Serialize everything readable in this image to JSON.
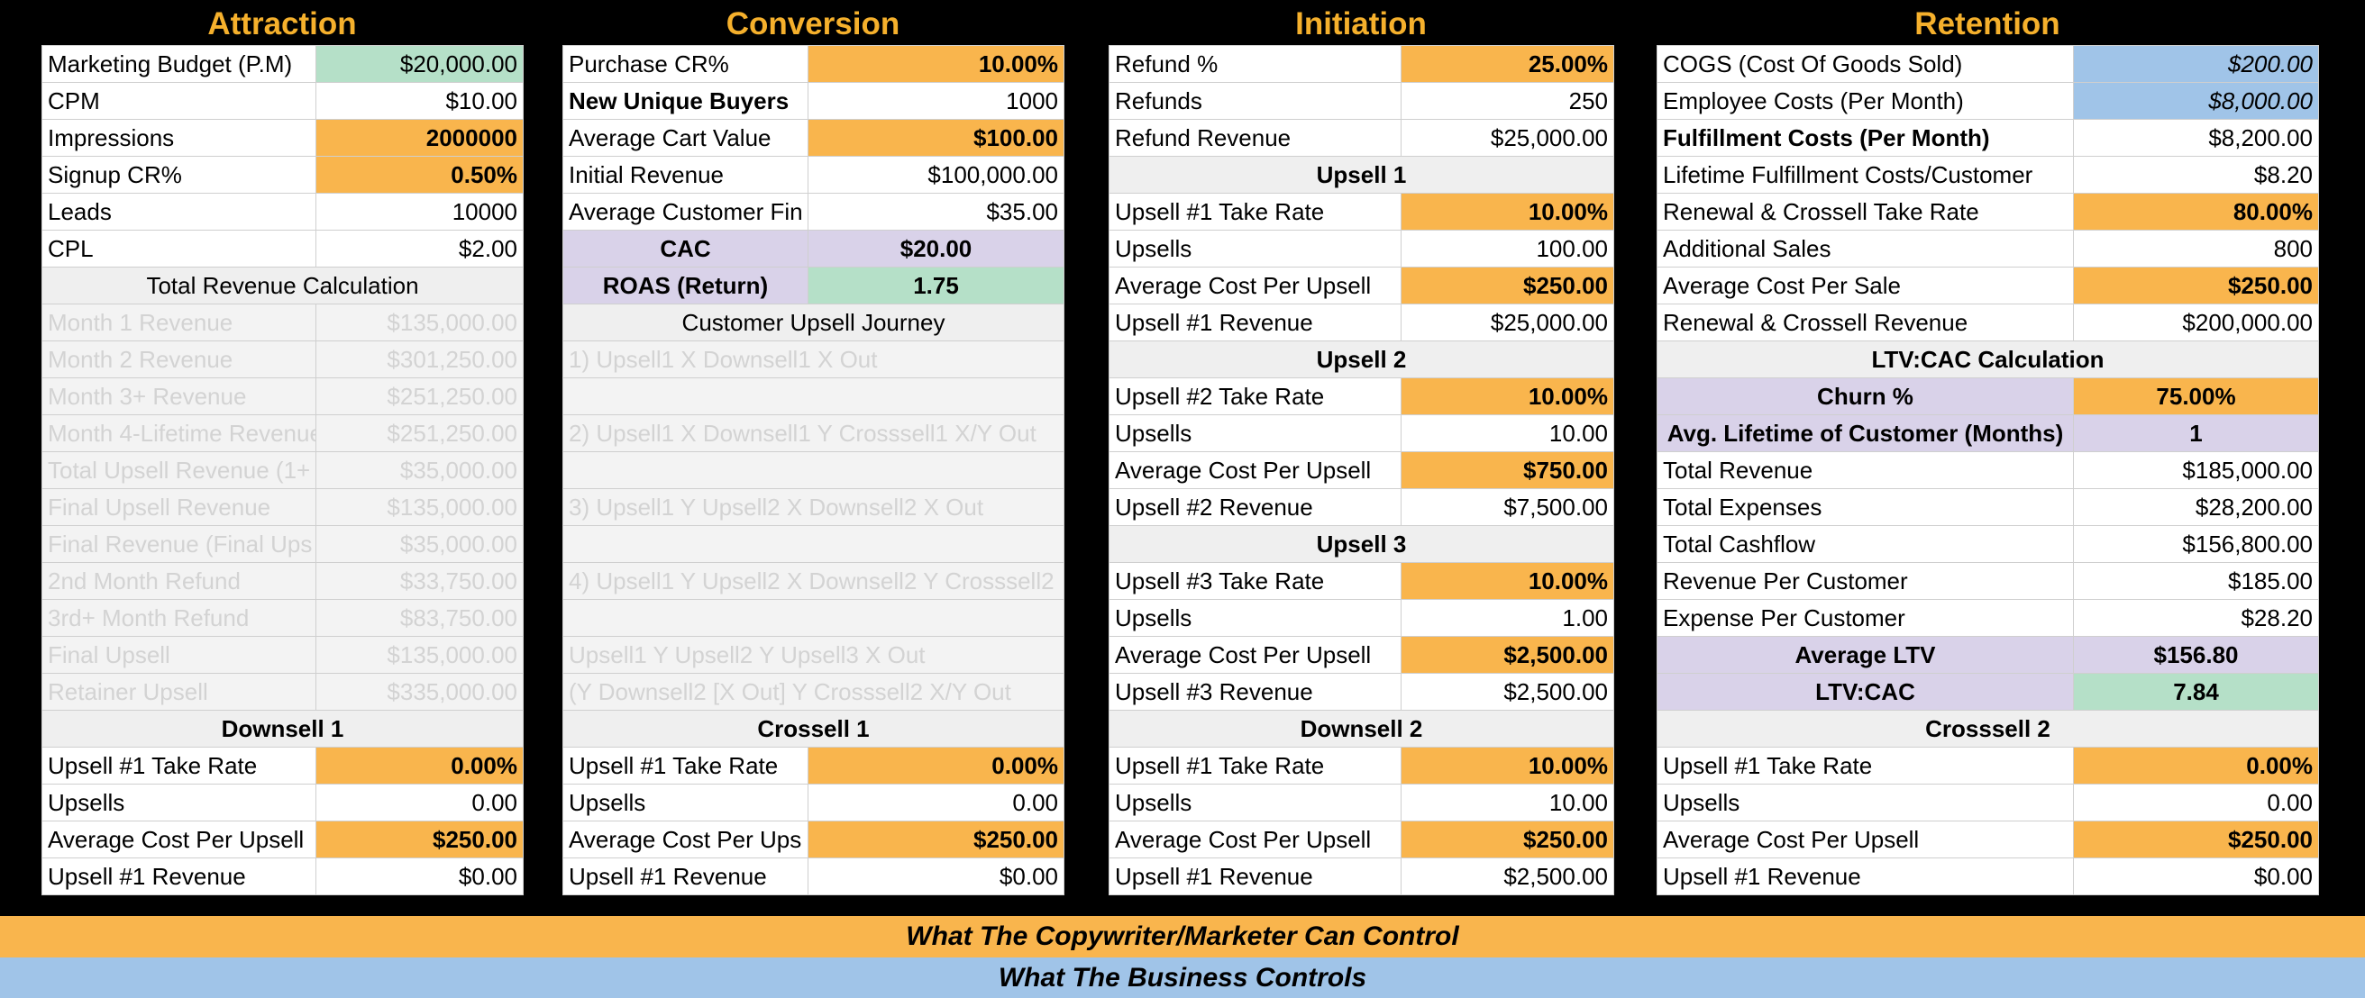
{
  "titles": {
    "attraction": "Attraction",
    "conversion": "Conversion",
    "initiation": "Initiation",
    "retention": "Retention"
  },
  "attraction": {
    "marketing_budget": {
      "label": "Marketing Budget (P.M)",
      "value": "$20,000.00"
    },
    "cpm": {
      "label": "CPM",
      "value": "$10.00"
    },
    "impressions": {
      "label": "Impressions",
      "value": "2000000"
    },
    "signup_cr": {
      "label": "Signup CR%",
      "value": "0.50%"
    },
    "leads": {
      "label": "Leads",
      "value": "10000"
    },
    "cpl": {
      "label": "CPL",
      "value": "$2.00"
    },
    "total_header": "Total Revenue Calculation",
    "revenue_rows": [
      {
        "label": "Month 1 Revenue",
        "value": "$135,000.00"
      },
      {
        "label": "Month 2 Revenue",
        "value": "$301,250.00"
      },
      {
        "label": "Month 3+ Revenue",
        "value": "$251,250.00"
      },
      {
        "label": "Month 4-Lifetime Revenue",
        "value": "$251,250.00"
      },
      {
        "label": "Total Upsell Revenue (1+",
        "value": "$35,000.00"
      },
      {
        "label": "Final Upsell Revenue",
        "value": "$135,000.00"
      },
      {
        "label": "Final Revenue (Final Ups",
        "value": "$35,000.00"
      },
      {
        "label": "2nd Month Refund",
        "value": "$33,750.00"
      },
      {
        "label": "3rd+ Month Refund",
        "value": "$83,750.00"
      },
      {
        "label": "Final Upsell",
        "value": "$135,000.00"
      },
      {
        "label": "Retainer Upsell",
        "value": "$335,000.00"
      }
    ]
  },
  "conversion": {
    "purchase_cr": {
      "label": "Purchase CR%",
      "value": "10.00%"
    },
    "new_unique_buyers": {
      "label": "New Unique Buyers",
      "value": "1000"
    },
    "avg_cart_value": {
      "label": "Average Cart Value",
      "value": "$100.00"
    },
    "initial_revenue": {
      "label": "Initial Revenue",
      "value": "$100,000.00"
    },
    "avg_customer_fin": {
      "label": "Average Customer Fin",
      "value": "$35.00"
    },
    "cac": {
      "label": "CAC",
      "value": "$20.00"
    },
    "roas": {
      "label": "ROAS (Return)",
      "value": "1.75"
    },
    "journey_header": "Customer Upsell Journey",
    "journey_rows": [
      "1) Upsell1 X Downsell1 X Out",
      "",
      "2) Upsell1 X Downsell1 Y Crosssell1 X/Y Out",
      "",
      "3) Upsell1 Y Upsell2 X Downsell2 X Out",
      "",
      "4) Upsell1 Y Upsell2 X Downsell2 Y Crosssell2",
      "",
      "Upsell1 Y Upsell2 Y Upsell3 X Out",
      "(Y Downsell2 [X Out] Y Crosssell2 X/Y Out"
    ]
  },
  "initiation": {
    "refund_pct": {
      "label": "Refund %",
      "value": "25.00%"
    },
    "refunds": {
      "label": "Refunds",
      "value": "250"
    },
    "refund_revenue": {
      "label": "Refund Revenue",
      "value": "$25,000.00"
    },
    "upsell1": {
      "header": "Upsell 1",
      "take": {
        "label": "Upsell #1 Take Rate",
        "value": "10.00%"
      },
      "upsells": {
        "label": "Upsells",
        "value": "100.00"
      },
      "avg": {
        "label": "Average Cost Per Upsell",
        "value": "$250.00"
      },
      "revenue": {
        "label": "Upsell #1 Revenue",
        "value": "$25,000.00"
      }
    },
    "upsell2": {
      "header": "Upsell 2",
      "take": {
        "label": "Upsell #2 Take Rate",
        "value": "10.00%"
      },
      "upsells": {
        "label": "Upsells",
        "value": "10.00"
      },
      "avg": {
        "label": "Average Cost Per Upsell",
        "value": "$750.00"
      },
      "revenue": {
        "label": "Upsell #2 Revenue",
        "value": "$7,500.00"
      }
    },
    "upsell3": {
      "header": "Upsell 3",
      "take": {
        "label": "Upsell #3 Take Rate",
        "value": "10.00%"
      },
      "upsells": {
        "label": "Upsells",
        "value": "1.00"
      },
      "avg": {
        "label": "Average Cost Per Upsell",
        "value": "$2,500.00"
      },
      "revenue": {
        "label": "Upsell #3 Revenue",
        "value": "$2,500.00"
      }
    }
  },
  "retention": {
    "cogs": {
      "label": "COGS (Cost Of Goods Sold)",
      "value": "$200.00"
    },
    "employee_costs": {
      "label": "Employee Costs (Per Month)",
      "value": "$8,000.00"
    },
    "fulfillment_costs": {
      "label": "Fulfillment Costs (Per Month)",
      "value": "$8,200.00"
    },
    "lifetime_fulfillment": {
      "label": "Lifetime Fulfillment Costs/Customer",
      "value": "$8.20"
    },
    "renewal_take": {
      "label": "Renewal & Crossell Take Rate",
      "value": "80.00%"
    },
    "additional_sales": {
      "label": "Additional Sales",
      "value": "800"
    },
    "avg_cost_sale": {
      "label": "Average Cost Per Sale",
      "value": "$250.00"
    },
    "renewal_revenue": {
      "label": "Renewal & Crossell Revenue",
      "value": "$200,000.00"
    },
    "ltv_header": "LTV:CAC Calculation",
    "churn": {
      "label": "Churn %",
      "value": "75.00%"
    },
    "avg_lifetime": {
      "label": "Avg. Lifetime of Customer (Months)",
      "value": "1"
    },
    "total_revenue": {
      "label": "Total Revenue",
      "value": "$185,000.00"
    },
    "total_expenses": {
      "label": "Total Expenses",
      "value": "$28,200.00"
    },
    "total_cashflow": {
      "label": "Total Cashflow",
      "value": "$156,800.00"
    },
    "revenue_per_customer": {
      "label": "Revenue Per Customer",
      "value": "$185.00"
    },
    "expense_per_customer": {
      "label": "Expense Per Customer",
      "value": "$28.20"
    },
    "avg_ltv": {
      "label": "Average LTV",
      "value": "$156.80"
    },
    "ltv_cac": {
      "label": "LTV:CAC",
      "value": "7.84"
    }
  },
  "bottom": {
    "downsell1": {
      "header": "Downsell 1",
      "take": {
        "label": "Upsell #1 Take Rate",
        "value": "0.00%"
      },
      "upsells": {
        "label": "Upsells",
        "value": "0.00"
      },
      "avg": {
        "label": "Average Cost Per Upsell",
        "value": "$250.00"
      },
      "revenue": {
        "label": "Upsell #1 Revenue",
        "value": "$0.00"
      }
    },
    "crossell1": {
      "header": "Crossell 1",
      "take": {
        "label": "Upsell #1 Take Rate",
        "value": "0.00%"
      },
      "upsells": {
        "label": "Upsells",
        "value": "0.00"
      },
      "avg": {
        "label": "Average Cost Per Ups",
        "value": "$250.00"
      },
      "revenue": {
        "label": "Upsell #1 Revenue",
        "value": "$0.00"
      }
    },
    "downsell2": {
      "header": "Downsell 2",
      "take": {
        "label": "Upsell #1 Take Rate",
        "value": "10.00%"
      },
      "upsells": {
        "label": "Upsells",
        "value": "10.00"
      },
      "avg": {
        "label": "Average Cost Per Upsell",
        "value": "$250.00"
      },
      "revenue": {
        "label": "Upsell #1 Revenue",
        "value": "$2,500.00"
      }
    },
    "crosssell2": {
      "header": "Crosssell 2",
      "take": {
        "label": "Upsell #1 Take Rate",
        "value": "0.00%"
      },
      "upsells": {
        "label": "Upsells",
        "value": "0.00"
      },
      "avg": {
        "label": "Average Cost Per Upsell",
        "value": "$250.00"
      },
      "revenue": {
        "label": "Upsell #1 Revenue",
        "value": "$0.00"
      }
    }
  },
  "legend": {
    "orange": "What The Copywriter/Marketer Can Control",
    "blue": "What The Business Controls"
  },
  "colors": {
    "title": "#f5b02c",
    "input_orange": "#f9b54d",
    "green": "#b5e0c8",
    "blue": "#a0c4e8",
    "purple": "#d9d2e9",
    "header_gray": "#efefef"
  }
}
